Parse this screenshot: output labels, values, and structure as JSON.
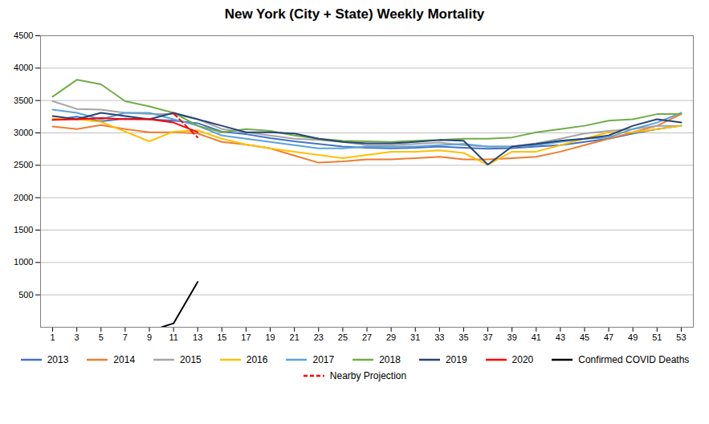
{
  "chart_data": {
    "type": "line",
    "title": "New York (City + State) Weekly Mortality",
    "x": [
      1,
      3,
      5,
      7,
      9,
      11,
      13,
      15,
      17,
      19,
      21,
      23,
      25,
      27,
      29,
      31,
      33,
      35,
      37,
      39,
      41,
      43,
      45,
      47,
      49,
      51,
      53
    ],
    "series": [
      {
        "name": "2013",
        "color": "#4472C4",
        "values": [
          3200,
          3250,
          3180,
          3220,
          3210,
          3190,
          3150,
          3020,
          2980,
          2920,
          2870,
          2830,
          2790,
          2770,
          2760,
          2770,
          2790,
          2770,
          2755,
          2765,
          2790,
          2810,
          2860,
          2910,
          2990,
          3060,
          3110
        ]
      },
      {
        "name": "2014",
        "color": "#ED7D31",
        "values": [
          3100,
          3060,
          3120,
          3060,
          3010,
          3010,
          2990,
          2860,
          2820,
          2760,
          2650,
          2540,
          2560,
          2590,
          2590,
          2610,
          2630,
          2590,
          2590,
          2610,
          2630,
          2710,
          2810,
          2910,
          3010,
          3110,
          3290
        ]
      },
      {
        "name": "2015",
        "color": "#A5A5A5",
        "values": [
          3490,
          3370,
          3360,
          3310,
          3290,
          3290,
          3210,
          3060,
          3010,
          2960,
          2910,
          2890,
          2860,
          2810,
          2810,
          2830,
          2850,
          2810,
          2790,
          2790,
          2840,
          2910,
          2990,
          3030,
          3060,
          3110,
          3110
        ]
      },
      {
        "name": "2016",
        "color": "#FFC000",
        "values": [
          3220,
          3210,
          3170,
          3020,
          2870,
          3020,
          3040,
          2910,
          2820,
          2760,
          2710,
          2660,
          2610,
          2660,
          2710,
          2710,
          2730,
          2690,
          2510,
          2710,
          2710,
          2810,
          2910,
          3010,
          3010,
          3060,
          3110
        ]
      },
      {
        "name": "2017",
        "color": "#5BA3D9",
        "values": [
          3360,
          3310,
          3210,
          3310,
          3310,
          3210,
          3110,
          2960,
          2910,
          2860,
          2810,
          2760,
          2760,
          2790,
          2790,
          2790,
          2810,
          2830,
          2790,
          2790,
          2810,
          2860,
          2910,
          2930,
          3060,
          3160,
          3310
        ]
      },
      {
        "name": "2018",
        "color": "#70AD47",
        "values": [
          3560,
          3820,
          3750,
          3490,
          3410,
          3310,
          3110,
          3010,
          3060,
          3030,
          2960,
          2910,
          2880,
          2870,
          2860,
          2880,
          2890,
          2910,
          2910,
          2930,
          3010,
          3060,
          3110,
          3190,
          3210,
          3290,
          3290
        ]
      },
      {
        "name": "2019",
        "color": "#264478",
        "values": [
          3260,
          3210,
          3310,
          3260,
          3210,
          3310,
          3210,
          3110,
          3010,
          3010,
          2990,
          2910,
          2860,
          2840,
          2840,
          2860,
          2890,
          2880,
          2510,
          2790,
          2830,
          2880,
          2910,
          2960,
          3110,
          3210,
          3160
        ]
      },
      {
        "name": "2020",
        "color": "#FF0000",
        "values": [
          3200,
          3210,
          3230,
          3210,
          3210,
          3160,
          3010,
          null,
          null,
          null,
          null,
          null,
          null,
          null,
          null,
          null,
          null,
          null,
          null,
          null,
          null,
          null,
          null,
          null,
          null,
          null,
          null
        ]
      },
      {
        "name": "Confirmed COVID Deaths",
        "color": "#000000",
        "x": [
          10,
          11,
          13
        ],
        "values": [
          0,
          60,
          700
        ]
      },
      {
        "name": "Nearby Projection",
        "color": "#FF0000",
        "line_style": "dashed",
        "x": [
          11,
          13
        ],
        "values": [
          3300,
          2930
        ]
      }
    ],
    "xlim": [
      0,
      54
    ],
    "xticks": [
      1,
      3,
      5,
      7,
      9,
      11,
      13,
      15,
      17,
      19,
      21,
      23,
      25,
      27,
      29,
      31,
      33,
      35,
      37,
      39,
      41,
      43,
      45,
      47,
      49,
      51,
      53
    ],
    "ylim": [
      0,
      4500
    ],
    "yticks": [
      500,
      1000,
      1500,
      2000,
      2500,
      3000,
      3500,
      4000,
      4500
    ],
    "grid": true,
    "legend": "bottom"
  }
}
